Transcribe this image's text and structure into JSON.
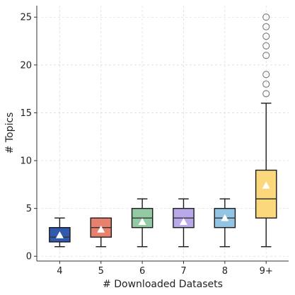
{
  "chart_data": {
    "type": "box",
    "title": "",
    "xlabel": "# Downloaded Datasets",
    "ylabel": "# Topics",
    "ylim": [
      -0.5,
      26.2
    ],
    "yticks": [
      0,
      5,
      10,
      15,
      20,
      25
    ],
    "ytick_labels": [
      "0",
      "5",
      "10",
      "15",
      "20",
      "25"
    ],
    "grid": true,
    "legend": "none",
    "categories": [
      "4",
      "5",
      "6",
      "7",
      "8",
      "9+"
    ],
    "boxes": [
      {
        "category": "4",
        "whisker_low": 1,
        "q1": 1.5,
        "median": 2,
        "q3": 3,
        "whisker_high": 4,
        "mean": 2.2,
        "color": "#2f5aae",
        "fliers": []
      },
      {
        "category": "5",
        "whisker_low": 1,
        "q1": 2,
        "median": 3,
        "q3": 4,
        "whisker_high": 4,
        "mean": 2.8,
        "color": "#e8806e",
        "fliers": []
      },
      {
        "category": "6",
        "whisker_low": 1,
        "q1": 3,
        "median": 4,
        "q3": 5,
        "whisker_high": 6,
        "mean": 3.6,
        "color": "#93c9a3",
        "fliers": []
      },
      {
        "category": "7",
        "whisker_low": 1,
        "q1": 3,
        "median": 4,
        "q3": 5,
        "whisker_high": 6,
        "mean": 3.6,
        "color": "#b9a9e9",
        "fliers": []
      },
      {
        "category": "8",
        "whisker_low": 1,
        "q1": 3,
        "median": 4,
        "q3": 5,
        "whisker_high": 6,
        "mean": 4.0,
        "color": "#93c4e4",
        "fliers": []
      },
      {
        "category": "9+",
        "whisker_low": 1,
        "q1": 4,
        "median": 6,
        "q3": 9,
        "whisker_high": 16,
        "mean": 7.4,
        "color": "#fbd87c",
        "fliers": [
          17,
          18,
          19,
          21,
          22,
          23,
          24,
          25
        ]
      }
    ],
    "colors": {
      "grid": "#dddddd",
      "axis": "#333333",
      "box_edge": "#1a1a1a",
      "whisker": "#1a1a1a",
      "median": "#333333",
      "mean_marker": "#ffffff",
      "flier_edge": "#777777"
    }
  }
}
